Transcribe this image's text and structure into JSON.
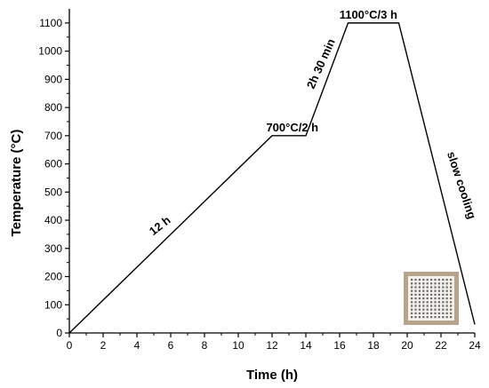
{
  "chart_data": {
    "type": "line",
    "xlabel": "Time (h)",
    "ylabel": "Temperature (°C)",
    "xlim": [
      0,
      24
    ],
    "ylim": [
      0,
      1150
    ],
    "x_ticks": [
      0,
      2,
      4,
      6,
      8,
      10,
      12,
      14,
      16,
      18,
      20,
      22,
      24
    ],
    "y_ticks": [
      0,
      100,
      200,
      300,
      400,
      500,
      600,
      700,
      800,
      900,
      1000,
      1100
    ],
    "grid": false,
    "series": [
      {
        "x": [
          0,
          12,
          14,
          16.5,
          19.5,
          24
        ],
        "y": [
          0,
          700,
          700,
          1100,
          1100,
          30
        ]
      }
    ],
    "annotations": [
      {
        "text": "12 h",
        "x": 5.5,
        "y": 370,
        "rotate": -38
      },
      {
        "text": "700°C/2 h",
        "x": 13.2,
        "y": 715,
        "rotate": 0
      },
      {
        "text": "2h 30 min",
        "x": 15.1,
        "y": 950,
        "rotate": -66
      },
      {
        "text": "1100°C/3 h",
        "x": 17.7,
        "y": 1115,
        "rotate": 0
      },
      {
        "text": "slow cooling",
        "x": 23.0,
        "y": 520,
        "rotate": 72
      }
    ],
    "inset_photo": "ceramic lattice sample"
  }
}
